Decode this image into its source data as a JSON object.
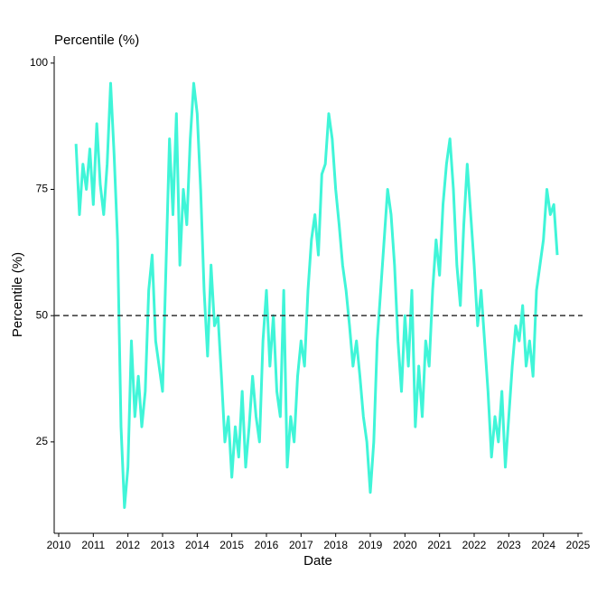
{
  "chart_data": {
    "type": "line",
    "title": "Percentile (%)",
    "x_label": "Date",
    "y_label": "Percentile (%)",
    "x": [
      2010.5,
      2010.6,
      2010.7,
      2010.8,
      2010.9,
      2011.0,
      2011.1,
      2011.2,
      2011.3,
      2011.4,
      2011.5,
      2011.6,
      2011.7,
      2011.8,
      2011.9,
      2012.0,
      2012.1,
      2012.2,
      2012.3,
      2012.4,
      2012.5,
      2012.6,
      2012.7,
      2012.8,
      2012.9,
      2013.0,
      2013.1,
      2013.2,
      2013.3,
      2013.4,
      2013.5,
      2013.6,
      2013.7,
      2013.8,
      2013.9,
      2014.0,
      2014.1,
      2014.2,
      2014.3,
      2014.4,
      2014.5,
      2014.6,
      2014.7,
      2014.8,
      2014.9,
      2015.0,
      2015.1,
      2015.2,
      2015.3,
      2015.4,
      2015.5,
      2015.6,
      2015.7,
      2015.8,
      2015.9,
      2016.0,
      2016.1,
      2016.2,
      2016.3,
      2016.4,
      2016.5,
      2016.6,
      2016.7,
      2016.8,
      2016.9,
      2017.0,
      2017.1,
      2017.2,
      2017.3,
      2017.4,
      2017.5,
      2017.6,
      2017.7,
      2017.8,
      2017.9,
      2018.0,
      2018.1,
      2018.2,
      2018.3,
      2018.4,
      2018.5,
      2018.6,
      2018.7,
      2018.8,
      2018.9,
      2019.0,
      2019.1,
      2019.2,
      2019.3,
      2019.4,
      2019.5,
      2019.6,
      2019.7,
      2019.8,
      2019.9,
      2020.0,
      2020.1,
      2020.2,
      2020.3,
      2020.4,
      2020.5,
      2020.6,
      2020.7,
      2020.8,
      2020.9,
      2021.0,
      2021.1,
      2021.2,
      2021.3,
      2021.4,
      2021.5,
      2021.6,
      2021.7,
      2021.8,
      2021.9,
      2022.0,
      2022.1,
      2022.2,
      2022.3,
      2022.4,
      2022.5,
      2022.6,
      2022.7,
      2022.8,
      2022.9,
      2023.0,
      2023.1,
      2023.2,
      2023.3,
      2023.4,
      2023.5,
      2023.6,
      2023.7,
      2023.8,
      2023.9,
      2024.0,
      2024.1,
      2024.2,
      2024.3,
      2024.4
    ],
    "series": [
      {
        "color": "#40f5d8",
        "values": [
          84,
          70,
          80,
          75,
          83,
          72,
          88,
          76,
          70,
          80,
          96,
          82,
          65,
          28,
          12,
          20,
          45,
          30,
          38,
          28,
          35,
          55,
          62,
          45,
          40,
          35,
          60,
          85,
          70,
          90,
          60,
          75,
          68,
          85,
          96,
          90,
          75,
          55,
          42,
          60,
          48,
          50,
          38,
          25,
          30,
          18,
          28,
          22,
          35,
          20,
          28,
          38,
          30,
          25,
          45,
          55,
          40,
          50,
          35,
          30,
          55,
          20,
          30,
          25,
          38,
          45,
          40,
          55,
          65,
          70,
          62,
          78,
          80,
          90,
          85,
          75,
          68,
          60,
          55,
          48,
          40,
          45,
          38,
          30,
          25,
          15,
          25,
          45,
          55,
          65,
          75,
          70,
          60,
          45,
          35,
          50,
          40,
          55,
          28,
          40,
          30,
          45,
          40,
          55,
          65,
          58,
          72,
          80,
          85,
          75,
          60,
          52,
          68,
          80,
          70,
          60,
          48,
          55,
          45,
          35,
          22,
          30,
          25,
          35,
          20,
          30,
          40,
          48,
          45,
          52,
          40,
          45,
          38,
          55,
          60,
          65,
          75,
          70,
          72,
          62
        ]
      }
    ],
    "reference_line": 50,
    "xlim": [
      2009.87,
      2025.13
    ],
    "xticks": [
      2010,
      2011,
      2012,
      2013,
      2014,
      2015,
      2016,
      2017,
      2018,
      2019,
      2020,
      2021,
      2022,
      2023,
      2024,
      2025
    ],
    "ylim": [
      6.9,
      101.4
    ],
    "yticks": [
      25,
      50,
      75,
      100
    ]
  }
}
